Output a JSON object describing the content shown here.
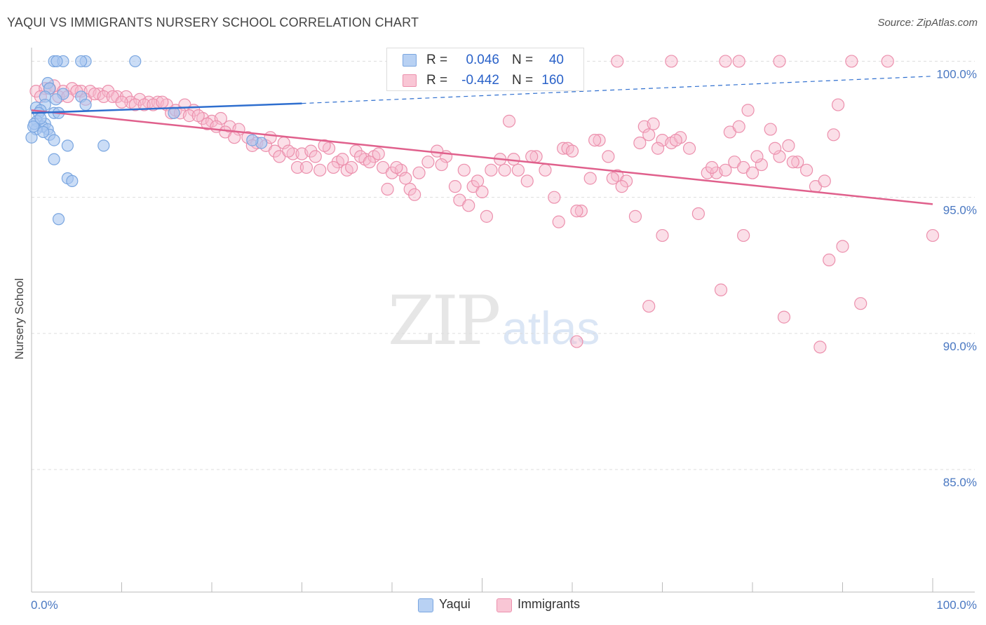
{
  "header": {
    "title": "YAQUI VS IMMIGRANTS NURSERY SCHOOL CORRELATION CHART",
    "source": "Source: ZipAtlas.com"
  },
  "watermark": {
    "zip": "ZIP",
    "atlas": "atlas"
  },
  "legend": {
    "rows": [
      {
        "r_label": "R =",
        "r_value": "0.046",
        "n_label": "N =",
        "n_value": "40"
      },
      {
        "r_label": "R =",
        "r_value": "-0.442",
        "n_label": "N =",
        "n_value": "160"
      }
    ]
  },
  "bottom_legend": {
    "yaqui": "Yaqui",
    "immigrants": "Immigrants"
  },
  "colors": {
    "yaqui_fill": "#a9c7f0",
    "yaqui_stroke": "#7aa6e0",
    "yaqui_line": "#2f6fcf",
    "immigrants_fill": "#f7b7cb",
    "immigrants_stroke": "#ec90ad",
    "immigrants_line": "#e0608c",
    "tick_label": "#4a78c2",
    "grid": "#dddddd"
  },
  "chart_data": {
    "type": "scatter",
    "title": "YAQUI VS IMMIGRANTS NURSERY SCHOOL CORRELATION CHART",
    "xlabel": "",
    "ylabel": "Nursery School",
    "xlim": [
      0,
      100
    ],
    "ylim": [
      80.5,
      100.5
    ],
    "x_tick_labels": [
      "0.0%",
      "100.0%"
    ],
    "y_ticks": [
      100,
      95,
      90,
      85
    ],
    "y_tick_labels": [
      "100.0%",
      "95.0%",
      "90.0%",
      "85.0%"
    ],
    "grid": "horizontal dashed",
    "legend_position": "top-center",
    "series": [
      {
        "name": "Yaqui",
        "R": 0.046,
        "N": 40,
        "trend": {
          "x": [
            0,
            30
          ],
          "y": [
            98.1,
            98.45
          ],
          "dashed_to": [
            100,
            99.45
          ]
        },
        "points": [
          [
            2.5,
            100
          ],
          [
            3.5,
            100
          ],
          [
            2.8,
            100
          ],
          [
            6,
            100
          ],
          [
            5.5,
            100
          ],
          [
            11.5,
            100
          ],
          [
            1.8,
            99.2
          ],
          [
            2,
            99.0
          ],
          [
            3.5,
            98.8
          ],
          [
            1.5,
            98.7
          ],
          [
            5.5,
            98.7
          ],
          [
            2.7,
            98.6
          ],
          [
            1.5,
            98.4
          ],
          [
            6,
            98.4
          ],
          [
            0.5,
            98.3
          ],
          [
            1,
            98.2
          ],
          [
            0.8,
            98.1
          ],
          [
            2.5,
            98.1
          ],
          [
            3,
            98.1
          ],
          [
            15.8,
            98.1
          ],
          [
            0.6,
            97.8
          ],
          [
            1.5,
            97.7
          ],
          [
            1.2,
            97.6
          ],
          [
            0.5,
            97.5
          ],
          [
            1.8,
            97.5
          ],
          [
            0,
            97.2
          ],
          [
            2,
            97.3
          ],
          [
            2.5,
            97.1
          ],
          [
            4,
            96.9
          ],
          [
            8,
            96.9
          ],
          [
            25.5,
            97.0
          ],
          [
            2.5,
            96.4
          ],
          [
            4,
            95.7
          ],
          [
            4.5,
            95.6
          ],
          [
            3,
            94.2
          ],
          [
            0.3,
            97.7
          ],
          [
            1,
            97.9
          ],
          [
            1.3,
            97.4
          ],
          [
            0.2,
            97.6
          ],
          [
            24.5,
            97.1
          ]
        ]
      },
      {
        "name": "Immigrants",
        "R": -0.442,
        "N": 160,
        "trend": {
          "x": [
            0,
            100
          ],
          "y": [
            98.2,
            94.75
          ]
        },
        "points": [
          [
            65,
            100
          ],
          [
            71,
            100
          ],
          [
            77,
            100
          ],
          [
            78.5,
            100
          ],
          [
            83,
            100
          ],
          [
            91,
            100
          ],
          [
            95,
            100
          ],
          [
            0.5,
            98.9
          ],
          [
            1.5,
            99.0
          ],
          [
            2.5,
            99.1
          ],
          [
            3.5,
            98.9
          ],
          [
            4.5,
            99.0
          ],
          [
            5.5,
            98.9
          ],
          [
            6.5,
            98.9
          ],
          [
            7.5,
            98.8
          ],
          [
            8.5,
            98.9
          ],
          [
            9.5,
            98.7
          ],
          [
            10.5,
            98.7
          ],
          [
            11,
            98.5
          ],
          [
            12,
            98.6
          ],
          [
            13,
            98.5
          ],
          [
            14,
            98.5
          ],
          [
            15,
            98.4
          ],
          [
            1,
            98.7
          ],
          [
            2,
            99.0
          ],
          [
            3,
            98.7
          ],
          [
            4,
            98.7
          ],
          [
            5,
            98.9
          ],
          [
            6,
            98.6
          ],
          [
            7,
            98.8
          ],
          [
            8,
            98.7
          ],
          [
            9,
            98.7
          ],
          [
            10,
            98.5
          ],
          [
            11.5,
            98.4
          ],
          [
            12.5,
            98.4
          ],
          [
            13.5,
            98.4
          ],
          [
            14.5,
            98.5
          ],
          [
            15.5,
            98.1
          ],
          [
            16,
            98.2
          ],
          [
            17,
            98.4
          ],
          [
            18,
            98.2
          ],
          [
            19,
            97.9
          ],
          [
            20,
            97.8
          ],
          [
            21,
            97.9
          ],
          [
            22,
            97.6
          ],
          [
            16.5,
            98.1
          ],
          [
            17.5,
            98.0
          ],
          [
            18.5,
            98.0
          ],
          [
            19.5,
            97.7
          ],
          [
            20.5,
            97.6
          ],
          [
            21.5,
            97.4
          ],
          [
            23,
            97.5
          ],
          [
            24,
            97.2
          ],
          [
            25,
            97.0
          ],
          [
            26,
            96.9
          ],
          [
            27,
            96.7
          ],
          [
            28,
            97.0
          ],
          [
            29,
            96.6
          ],
          [
            22.5,
            97.2
          ],
          [
            24.5,
            96.9
          ],
          [
            26.5,
            97.2
          ],
          [
            27.5,
            96.5
          ],
          [
            28.5,
            96.7
          ],
          [
            29.5,
            96.1
          ],
          [
            30,
            96.6
          ],
          [
            31,
            96.7
          ],
          [
            32,
            96.0
          ],
          [
            33,
            96.8
          ],
          [
            34,
            96.3
          ],
          [
            35,
            96.0
          ],
          [
            36,
            96.7
          ],
          [
            37,
            96.4
          ],
          [
            30.5,
            96.1
          ],
          [
            31.5,
            96.5
          ],
          [
            32.5,
            96.9
          ],
          [
            33.5,
            96.1
          ],
          [
            34.5,
            96.4
          ],
          [
            35.5,
            96.1
          ],
          [
            36.5,
            96.5
          ],
          [
            38,
            96.5
          ],
          [
            39,
            96.1
          ],
          [
            40,
            95.9
          ],
          [
            41,
            96.0
          ],
          [
            42,
            95.3
          ],
          [
            43,
            95.9
          ],
          [
            44,
            96.3
          ],
          [
            45,
            96.7
          ],
          [
            37.5,
            96.3
          ],
          [
            38.5,
            96.6
          ],
          [
            39.5,
            95.3
          ],
          [
            40.5,
            96.1
          ],
          [
            41.5,
            95.7
          ],
          [
            42.5,
            95.1
          ],
          [
            46,
            96.5
          ],
          [
            47,
            95.4
          ],
          [
            48,
            96.0
          ],
          [
            49,
            95.4
          ],
          [
            50,
            95.2
          ],
          [
            51,
            96.0
          ],
          [
            52,
            96.4
          ],
          [
            45.5,
            96.2
          ],
          [
            47.5,
            94.9
          ],
          [
            48.5,
            94.7
          ],
          [
            49.5,
            95.6
          ],
          [
            50.5,
            94.3
          ],
          [
            53,
            97.8
          ],
          [
            54,
            96.0
          ],
          [
            55,
            95.6
          ],
          [
            56,
            96.5
          ],
          [
            57,
            96.0
          ],
          [
            58,
            95.0
          ],
          [
            59,
            96.8
          ],
          [
            52.5,
            96.0
          ],
          [
            53.5,
            96.4
          ],
          [
            55.5,
            96.5
          ],
          [
            58.5,
            94.1
          ],
          [
            59.5,
            96.8
          ],
          [
            60,
            96.7
          ],
          [
            61,
            94.5
          ],
          [
            62,
            95.7
          ],
          [
            63,
            97.1
          ],
          [
            64,
            96.5
          ],
          [
            65,
            95.8
          ],
          [
            66,
            95.6
          ],
          [
            60.5,
            94.5
          ],
          [
            62.5,
            97.1
          ],
          [
            64.5,
            95.7
          ],
          [
            65.5,
            95.4
          ],
          [
            67,
            94.3
          ],
          [
            68,
            97.6
          ],
          [
            69,
            97.7
          ],
          [
            70,
            97.1
          ],
          [
            71,
            97.0
          ],
          [
            72,
            97.2
          ],
          [
            73,
            96.8
          ],
          [
            67.5,
            97.0
          ],
          [
            68.5,
            97.3
          ],
          [
            69.5,
            96.8
          ],
          [
            71.5,
            97.1
          ],
          [
            74,
            94.4
          ],
          [
            75,
            95.9
          ],
          [
            76,
            95.9
          ],
          [
            77,
            96.0
          ],
          [
            78,
            96.3
          ],
          [
            79,
            96.1
          ],
          [
            80,
            95.9
          ],
          [
            81,
            96.2
          ],
          [
            75.5,
            96.1
          ],
          [
            77.5,
            97.4
          ],
          [
            78.5,
            97.6
          ],
          [
            79.5,
            98.2
          ],
          [
            80.5,
            96.5
          ],
          [
            82,
            97.5
          ],
          [
            83,
            96.5
          ],
          [
            84,
            96.9
          ],
          [
            85,
            96.3
          ],
          [
            86,
            96.0
          ],
          [
            87,
            95.4
          ],
          [
            88,
            95.6
          ],
          [
            82.5,
            96.8
          ],
          [
            84.5,
            96.3
          ],
          [
            89,
            97.3
          ],
          [
            89.5,
            98.4
          ],
          [
            60.5,
            89.7
          ],
          [
            68.5,
            91.0
          ],
          [
            76.5,
            91.6
          ],
          [
            83.5,
            90.6
          ],
          [
            87.5,
            89.5
          ],
          [
            88.5,
            92.7
          ],
          [
            90,
            93.2
          ],
          [
            92,
            91.1
          ],
          [
            100,
            93.6
          ],
          [
            70,
            93.6
          ],
          [
            79,
            93.6
          ]
        ]
      }
    ]
  }
}
